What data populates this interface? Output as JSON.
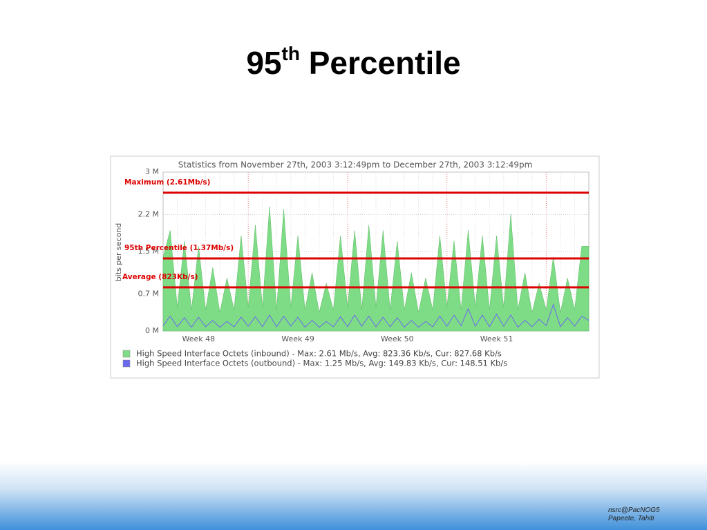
{
  "slide": {
    "title_number": "95",
    "title_suffix": "th",
    "title_text": "Percentile",
    "footer": [
      "nsrc@PacNOG5",
      "Papeete, Tahiti"
    ]
  },
  "chart_data": {
    "type": "area",
    "title": "Statistics from November 27th, 2003 3:12:49pm to December 27th, 2003 3:12:49pm",
    "y_label": "bits per second",
    "x": [
      0,
      0.5,
      1,
      1.5,
      2,
      2.5,
      3,
      3.5,
      4,
      4.5,
      5,
      5.5,
      6,
      6.5,
      7,
      7.5,
      8,
      8.5,
      9,
      9.5,
      10,
      10.5,
      11,
      11.5,
      12,
      12.5,
      13,
      13.5,
      14,
      14.5,
      15,
      15.5,
      16,
      16.5,
      17,
      17.5,
      18,
      18.5,
      19,
      19.5,
      20,
      20.5,
      21,
      21.5,
      22,
      22.5,
      23,
      23.5,
      24,
      24.5,
      25,
      25.5,
      26,
      26.5,
      27,
      27.5,
      28,
      28.5,
      29,
      29.5,
      30
    ],
    "xlim": [
      0,
      30
    ],
    "xticks": [
      {
        "value": 2.5,
        "label": "Week 48"
      },
      {
        "value": 9.5,
        "label": "Week 49"
      },
      {
        "value": 16.5,
        "label": "Week 50"
      },
      {
        "value": 23.5,
        "label": "Week 51"
      }
    ],
    "week_boundaries": [
      6,
      13,
      20,
      27
    ],
    "x_minor_step": 1,
    "ylim": [
      0,
      3
    ],
    "yticks": [
      {
        "value": 0,
        "label": "0 M"
      },
      {
        "value": 0.7,
        "label": "0.7 M"
      },
      {
        "value": 1.5,
        "label": "1.5 M"
      },
      {
        "value": 2.2,
        "label": "2.2 M"
      },
      {
        "value": 3,
        "label": "3 M"
      }
    ],
    "grid": true,
    "series": [
      {
        "name": "High Speed Interface Octets (inbound) - Max: 2.61 Mb/s, Avg: 823.36 Kb/s, Cur: 827.68 Kb/s",
        "color": "#7fdc86",
        "fill": true,
        "values": [
          1.4,
          1.9,
          0.45,
          1.7,
          0.4,
          1.6,
          0.4,
          1.2,
          0.35,
          1.0,
          0.4,
          1.8,
          0.45,
          2.0,
          0.45,
          2.35,
          0.4,
          2.3,
          0.45,
          1.8,
          0.4,
          1.1,
          0.35,
          0.9,
          0.4,
          1.8,
          0.45,
          1.9,
          0.4,
          2.0,
          0.45,
          1.9,
          0.4,
          1.7,
          0.4,
          1.1,
          0.35,
          1.0,
          0.4,
          1.8,
          0.45,
          1.7,
          0.4,
          1.9,
          0.45,
          1.8,
          0.4,
          1.8,
          0.45,
          2.2,
          0.4,
          1.1,
          0.35,
          0.9,
          0.4,
          1.4,
          0.35,
          1.0,
          0.4,
          1.6,
          1.6
        ]
      },
      {
        "name": "High Speed Interface Octets (outbound) - Max: 1.25 Mb/s, Avg: 149.83 Kb/s, Cur: 148.51 Kb/s",
        "color": "#6a6aee",
        "fill": false,
        "values": [
          0.1,
          0.28,
          0.08,
          0.25,
          0.07,
          0.26,
          0.08,
          0.2,
          0.07,
          0.18,
          0.08,
          0.26,
          0.09,
          0.27,
          0.08,
          0.3,
          0.08,
          0.28,
          0.09,
          0.26,
          0.07,
          0.2,
          0.07,
          0.18,
          0.08,
          0.27,
          0.08,
          0.3,
          0.09,
          0.28,
          0.08,
          0.26,
          0.08,
          0.25,
          0.07,
          0.2,
          0.07,
          0.18,
          0.08,
          0.28,
          0.09,
          0.3,
          0.1,
          0.42,
          0.09,
          0.3,
          0.08,
          0.32,
          0.09,
          0.3,
          0.07,
          0.2,
          0.08,
          0.22,
          0.1,
          0.5,
          0.08,
          0.25,
          0.09,
          0.28,
          0.2
        ]
      }
    ],
    "reference_lines": [
      {
        "label": "Maximum (2.61Mb/s)",
        "value": 2.61,
        "color": "#dd0000"
      },
      {
        "label": "95th Percentile (1.37Mb/s)",
        "value": 1.37,
        "color": "#dd0000"
      },
      {
        "label": "Average (823Kb/s)",
        "value": 0.823,
        "color": "#dd0000"
      }
    ]
  }
}
